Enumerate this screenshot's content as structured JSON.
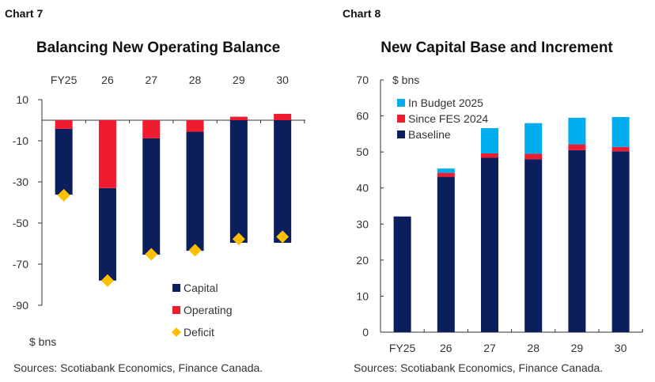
{
  "chart_data": [
    {
      "type": "bar",
      "chart_label": "Chart 7",
      "title": "Balancing New Operating Balance",
      "unit_label": "$ bns",
      "categories": [
        "FY25",
        "26",
        "27",
        "28",
        "29",
        "30"
      ],
      "ylim": [
        -90,
        10
      ],
      "yticks": [
        10,
        -10,
        -30,
        -50,
        -70,
        -90
      ],
      "x_axis_position": "top",
      "series": [
        {
          "name": "Capital",
          "type": "bar",
          "color": "#0b1f5c",
          "values": [
            -32,
            -45,
            -56.6,
            -57.9,
            -59.6,
            -59.6
          ]
        },
        {
          "name": "Operating",
          "type": "bar",
          "color": "#ee1c2e",
          "values": [
            -4.2,
            -33,
            -8.8,
            -5.6,
            1.7,
            3.1
          ]
        },
        {
          "name": "Deficit",
          "type": "marker",
          "color": "#fdbf00",
          "values": [
            -36.5,
            -78,
            -65.2,
            -63.2,
            -57.8,
            -56.7
          ]
        }
      ],
      "legend": "bottom-right",
      "source": "Sources: Scotiabank Economics, Finance Canada."
    },
    {
      "type": "bar",
      "chart_label": "Chart 8",
      "title": "New Capital Base and Increment",
      "unit_label": "$ bns",
      "categories": [
        "FY25",
        "26",
        "27",
        "28",
        "29",
        "30"
      ],
      "ylim": [
        0,
        70
      ],
      "yticks": [
        0,
        10,
        20,
        30,
        40,
        50,
        60,
        70
      ],
      "series": [
        {
          "name": "Baseline",
          "color": "#0b1f5c",
          "values": [
            32.1,
            43.1,
            48.4,
            48.0,
            50.5,
            50.2
          ]
        },
        {
          "name": "Since FES 2024",
          "color": "#ee1c2e",
          "values": [
            0,
            1.1,
            1.2,
            1.5,
            1.6,
            1.2
          ]
        },
        {
          "name": "In Budget 2025",
          "color": "#00aeef",
          "values": [
            0,
            1.2,
            7.0,
            8.5,
            7.4,
            8.3
          ]
        }
      ],
      "legend": "top-left",
      "source": "Sources: Scotiabank Economics, Finance Canada."
    }
  ]
}
